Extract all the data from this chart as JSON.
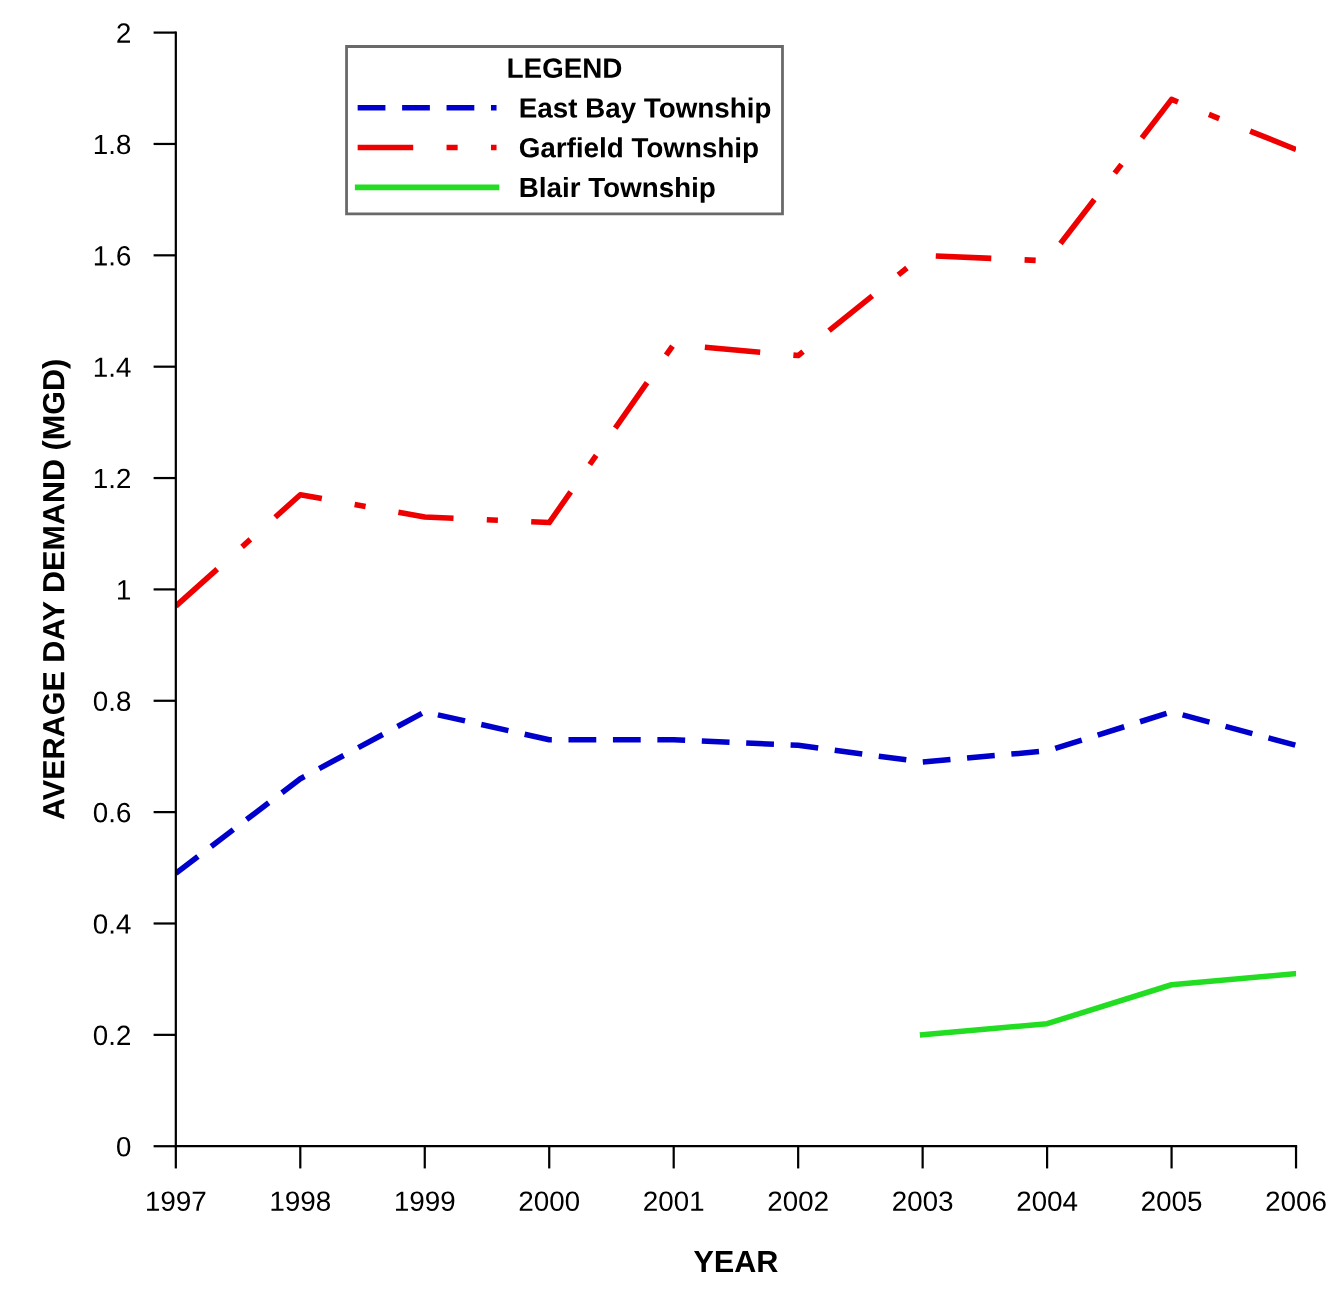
{
  "chart_data": {
    "type": "line",
    "xlabel": "YEAR",
    "ylabel": "AVERAGE DAY DEMAND (MGD)",
    "legend_title": "LEGEND",
    "legend": "top left",
    "grid": false,
    "x": [
      1997,
      1998,
      1999,
      2000,
      2001,
      2002,
      2003,
      2004,
      2005,
      2006
    ],
    "xlim": [
      1997,
      2006
    ],
    "xticks": [
      1997,
      1998,
      1999,
      2000,
      2001,
      2002,
      2003,
      2004,
      2005,
      2006
    ],
    "ylim": [
      0,
      2
    ],
    "yticks": [
      0,
      {
        "value": 0.2,
        "label": "0.2"
      },
      {
        "value": 0.4,
        "label": "0.4"
      },
      {
        "value": 0.6,
        "label": "0.6"
      },
      {
        "value": 0.8,
        "label": "0.8"
      },
      1,
      {
        "value": 1.2,
        "label": "1.2"
      },
      {
        "value": 1.4,
        "label": "1.4"
      },
      {
        "value": 1.6,
        "label": "1.6"
      },
      {
        "value": 1.8,
        "label": "1.8"
      },
      2
    ],
    "series": [
      {
        "name": "East Bay Township",
        "color": "#0000cc",
        "line_style": "dashed",
        "values": [
          0.49,
          0.66,
          0.78,
          0.73,
          0.73,
          0.72,
          0.69,
          0.71,
          0.78,
          0.72
        ]
      },
      {
        "name": "Garfield Township",
        "color": "#ee0000",
        "line_style": "dashdot",
        "values": [
          0.97,
          1.17,
          1.13,
          1.12,
          1.44,
          1.42,
          1.6,
          1.59,
          1.88,
          1.79
        ]
      },
      {
        "name": "Blair Township",
        "color": "#22dd22",
        "line_style": "solid",
        "values": [
          null,
          null,
          null,
          null,
          null,
          null,
          0.2,
          0.22,
          0.29,
          0.31
        ]
      }
    ]
  }
}
